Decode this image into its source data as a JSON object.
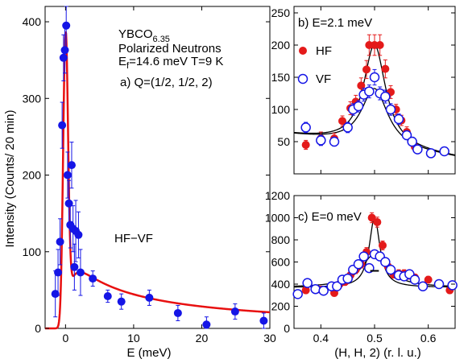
{
  "chart_data": [
    {
      "id": "a",
      "type": "scatter",
      "xlabel": "E (meV)",
      "ylabel": "Intensity (Counts/ 20 min)",
      "xlim": [
        -3,
        30
      ],
      "ylim": [
        0,
        420
      ],
      "xticks": [
        0,
        10,
        20,
        30
      ],
      "yticks": [
        0,
        100,
        200,
        300,
        400
      ],
      "annotations": {
        "sample": "YBCO",
        "sample_sub": "6.35",
        "line2": "Polarized Neutrons",
        "line3_pre": "E",
        "line3_sub": "f",
        "line3_post": "=14.6 meV T=9 K",
        "panel_label": "a) Q=(1/2, 1/2, 2)",
        "series_label": "HF−VF"
      },
      "series": [
        {
          "marker": "filled-circle",
          "color": "#1515e6",
          "points": [
            {
              "x": -1.5,
              "y": 45,
              "err": 30
            },
            {
              "x": -1.1,
              "y": 73,
              "err": 30
            },
            {
              "x": -0.8,
              "y": 113,
              "err": 30
            },
            {
              "x": -0.5,
              "y": 265,
              "err": 30
            },
            {
              "x": -0.3,
              "y": 353,
              "err": 30
            },
            {
              "x": -0.1,
              "y": 363,
              "err": 30
            },
            {
              "x": 0.1,
              "y": 395,
              "err": 30
            },
            {
              "x": 0.3,
              "y": 200,
              "err": 30
            },
            {
              "x": 0.5,
              "y": 163,
              "err": 30
            },
            {
              "x": 0.7,
              "y": 135,
              "err": 30
            },
            {
              "x": 0.9,
              "y": 213,
              "err": 30
            },
            {
              "x": 1.1,
              "y": 130,
              "err": 30
            },
            {
              "x": 1.3,
              "y": 80,
              "err": 30
            },
            {
              "x": 1.5,
              "y": 127,
              "err": 40
            },
            {
              "x": 1.9,
              "y": 122,
              "err": 30
            },
            {
              "x": 2.2,
              "y": 73,
              "err": 30
            },
            {
              "x": 4.0,
              "y": 65,
              "err": 10
            },
            {
              "x": 6.2,
              "y": 42,
              "err": 8
            },
            {
              "x": 8.2,
              "y": 35,
              "err": 10
            },
            {
              "x": 12.3,
              "y": 40,
              "err": 10
            },
            {
              "x": 16.5,
              "y": 20,
              "err": 10
            },
            {
              "x": 20.7,
              "y": 5,
              "err": 10
            },
            {
              "x": 24.9,
              "y": 22,
              "err": 10
            },
            {
              "x": 29.1,
              "y": 10,
              "err": 10
            }
          ]
        }
      ],
      "fit": {
        "color": "#e81010",
        "peak": 385,
        "center": 0,
        "width": 0.35,
        "tail": 100,
        "tail_decay": 8
      }
    },
    {
      "id": "b",
      "type": "scatter",
      "xlabel": "",
      "ylabel": "",
      "xlim": [
        0.35,
        0.65
      ],
      "ylim": [
        0,
        260
      ],
      "xticks": [
        0.4,
        0.5,
        0.6
      ],
      "yticks": [
        50,
        100,
        150,
        200,
        250
      ],
      "ytick_labels": [
        "50",
        "100",
        "150",
        "200",
        "250"
      ],
      "title": "b) E=2.1 meV",
      "legend": [
        {
          "label": "HF",
          "marker": "filled-circle",
          "color": "#e41a1a"
        },
        {
          "label": "VF",
          "marker": "open-circle",
          "color": "#1515e6"
        }
      ],
      "series": [
        {
          "name": "HF",
          "marker": "filled-circle",
          "color": "#e41a1a",
          "points": [
            {
              "x": 0.372,
              "y": 45,
              "err": 7
            },
            {
              "x": 0.4,
              "y": 55,
              "err": 10
            },
            {
              "x": 0.425,
              "y": 55,
              "err": 8
            },
            {
              "x": 0.44,
              "y": 82,
              "err": 8
            },
            {
              "x": 0.455,
              "y": 102,
              "err": 10
            },
            {
              "x": 0.465,
              "y": 112,
              "err": 10
            },
            {
              "x": 0.475,
              "y": 137,
              "err": 12
            },
            {
              "x": 0.485,
              "y": 162,
              "err": 14
            },
            {
              "x": 0.49,
              "y": 200,
              "err": 16
            },
            {
              "x": 0.5,
              "y": 200,
              "err": 16
            },
            {
              "x": 0.51,
              "y": 200,
              "err": 16
            },
            {
              "x": 0.52,
              "y": 163,
              "err": 14
            },
            {
              "x": 0.53,
              "y": 127,
              "err": 10
            },
            {
              "x": 0.54,
              "y": 100,
              "err": 8
            },
            {
              "x": 0.55,
              "y": 83,
              "err": 8
            },
            {
              "x": 0.56,
              "y": 65,
              "err": 8
            },
            {
              "x": 0.575,
              "y": 42,
              "err": 6
            }
          ]
        },
        {
          "name": "VF",
          "marker": "open-circle",
          "color": "#1515e6",
          "points": [
            {
              "x": 0.372,
              "y": 72,
              "err": 8
            },
            {
              "x": 0.4,
              "y": 52,
              "err": 8
            },
            {
              "x": 0.425,
              "y": 50,
              "err": 7
            },
            {
              "x": 0.45,
              "y": 72,
              "err": 8
            },
            {
              "x": 0.46,
              "y": 100,
              "err": 9
            },
            {
              "x": 0.47,
              "y": 105,
              "err": 9
            },
            {
              "x": 0.48,
              "y": 123,
              "err": 10
            },
            {
              "x": 0.49,
              "y": 128,
              "err": 10
            },
            {
              "x": 0.5,
              "y": 150,
              "err": 12
            },
            {
              "x": 0.51,
              "y": 125,
              "err": 10
            },
            {
              "x": 0.52,
              "y": 120,
              "err": 10
            },
            {
              "x": 0.53,
              "y": 100,
              "err": 9
            },
            {
              "x": 0.545,
              "y": 85,
              "err": 8
            },
            {
              "x": 0.56,
              "y": 60,
              "err": 7
            },
            {
              "x": 0.57,
              "y": 50,
              "err": 7
            },
            {
              "x": 0.58,
              "y": 38,
              "err": 6
            },
            {
              "x": 0.605,
              "y": 32,
              "err": 5
            },
            {
              "x": 0.63,
              "y": 35,
              "err": 5
            }
          ]
        }
      ],
      "fits": [
        {
          "amp": 158,
          "center": 0.5,
          "hwhm": 0.025,
          "base_at_left": 60,
          "base_at_right": 25
        },
        {
          "amp": 90,
          "center": 0.5,
          "hwhm": 0.03,
          "base_at_left": 60,
          "base_at_right": 25
        }
      ]
    },
    {
      "id": "c",
      "type": "scatter",
      "xlabel": "(H, H, 2) (r. l. u.)",
      "ylabel": "",
      "xlim": [
        0.35,
        0.65
      ],
      "ylim": [
        0,
        1200
      ],
      "xticks": [
        0.4,
        0.5,
        0.6
      ],
      "xtick_labels": [
        "0.4",
        "0.5",
        "0.6"
      ],
      "yticks": [
        0,
        200,
        400,
        600,
        800,
        1000,
        1200
      ],
      "ytick_labels": [
        "0",
        "200",
        "400",
        "600",
        "800",
        "1000",
        "1200"
      ],
      "title": "c) E=0 meV",
      "series": [
        {
          "name": "HF",
          "marker": "filled-circle",
          "color": "#e41a1a",
          "points": [
            {
              "x": 0.372,
              "y": 345,
              "err": 30
            },
            {
              "x": 0.4,
              "y": 350,
              "err": 30
            },
            {
              "x": 0.425,
              "y": 320,
              "err": 30
            },
            {
              "x": 0.435,
              "y": 400,
              "err": 30
            },
            {
              "x": 0.445,
              "y": 420,
              "err": 30
            },
            {
              "x": 0.455,
              "y": 480,
              "err": 30
            },
            {
              "x": 0.465,
              "y": 530,
              "err": 35
            },
            {
              "x": 0.475,
              "y": 580,
              "err": 35
            },
            {
              "x": 0.485,
              "y": 690,
              "err": 40
            },
            {
              "x": 0.495,
              "y": 1000,
              "err": 45
            },
            {
              "x": 0.505,
              "y": 960,
              "err": 45
            },
            {
              "x": 0.515,
              "y": 750,
              "err": 40
            },
            {
              "x": 0.525,
              "y": 560,
              "err": 35
            },
            {
              "x": 0.535,
              "y": 490,
              "err": 35
            },
            {
              "x": 0.545,
              "y": 495,
              "err": 35
            },
            {
              "x": 0.555,
              "y": 495,
              "err": 35
            },
            {
              "x": 0.565,
              "y": 480,
              "err": 35
            },
            {
              "x": 0.575,
              "y": 460,
              "err": 30
            },
            {
              "x": 0.6,
              "y": 440,
              "err": 30
            },
            {
              "x": 0.64,
              "y": 345,
              "err": 30
            }
          ]
        },
        {
          "name": "VF",
          "marker": "open-circle",
          "color": "#1515e6",
          "points": [
            {
              "x": 0.357,
              "y": 310,
              "err": 25
            },
            {
              "x": 0.375,
              "y": 410,
              "err": 25
            },
            {
              "x": 0.39,
              "y": 355,
              "err": 25
            },
            {
              "x": 0.405,
              "y": 340,
              "err": 25
            },
            {
              "x": 0.42,
              "y": 380,
              "err": 25
            },
            {
              "x": 0.43,
              "y": 380,
              "err": 25
            },
            {
              "x": 0.44,
              "y": 440,
              "err": 25
            },
            {
              "x": 0.45,
              "y": 450,
              "err": 25
            },
            {
              "x": 0.46,
              "y": 530,
              "err": 28
            },
            {
              "x": 0.47,
              "y": 580,
              "err": 30
            },
            {
              "x": 0.48,
              "y": 650,
              "err": 30
            },
            {
              "x": 0.49,
              "y": 545,
              "err": 30
            },
            {
              "x": 0.5,
              "y": 670,
              "err": 30
            },
            {
              "x": 0.51,
              "y": 650,
              "err": 30
            },
            {
              "x": 0.52,
              "y": 600,
              "err": 28
            },
            {
              "x": 0.53,
              "y": 530,
              "err": 28
            },
            {
              "x": 0.545,
              "y": 480,
              "err": 28
            },
            {
              "x": 0.555,
              "y": 470,
              "err": 28
            },
            {
              "x": 0.565,
              "y": 490,
              "err": 28
            },
            {
              "x": 0.575,
              "y": 440,
              "err": 25
            },
            {
              "x": 0.59,
              "y": 380,
              "err": 25
            },
            {
              "x": 0.62,
              "y": 400,
              "err": 25
            },
            {
              "x": 0.645,
              "y": 390,
              "err": 25
            }
          ]
        }
      ],
      "fits": [
        {
          "amp": 630,
          "center": 0.5,
          "hwhm": 0.012,
          "base_at_left": 370,
          "base_at_right": 370,
          "broad_amp": 0
        },
        {
          "amp": 300,
          "center": 0.5,
          "hwhm": 0.03,
          "base_at_left": 370,
          "base_at_right": 370,
          "broad_amp": 0
        }
      ],
      "resolution_bar": {
        "x1": 0.492,
        "x2": 0.508,
        "y": 520
      }
    }
  ]
}
